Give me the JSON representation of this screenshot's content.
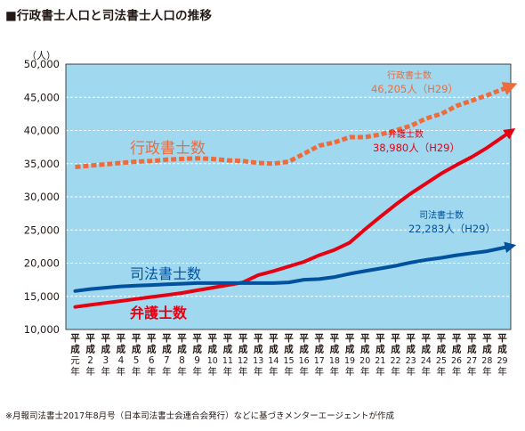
{
  "title": "■行政書士人口と司法書士人口の推移",
  "source_note": "※月報司法書士2017年8月号（日本司法書士会連合会発行）などに基づきメンターエージェントが作成",
  "chart_data": {
    "type": "line",
    "title": "■行政書士人口と司法書士人口の推移",
    "ylabel": "（人）",
    "xlabel": "",
    "ylim": [
      10000,
      50000
    ],
    "ytick_step": 5000,
    "y_tick_labels": [
      "10,000",
      "15,000",
      "20,000",
      "25,000",
      "30,000",
      "35,000",
      "40,000",
      "45,000",
      "50,000"
    ],
    "grid": true,
    "categories": [
      "平成元年",
      "平成2年",
      "平成3年",
      "平成4年",
      "平成5年",
      "平成6年",
      "平成7年",
      "平成8年",
      "平成9年",
      "平成10年",
      "平成11年",
      "平成12年",
      "平成13年",
      "平成14年",
      "平成15年",
      "平成16年",
      "平成17年",
      "平成18年",
      "平成19年",
      "平成20年",
      "平成21年",
      "平成22年",
      "平成23年",
      "平成24年",
      "平成25年",
      "平成26年",
      "平成27年",
      "平成28年",
      "平成29年"
    ],
    "x_tick_labels": [
      [
        "平",
        "成",
        "元",
        "年"
      ],
      [
        "平",
        "成",
        "2",
        "年"
      ],
      [
        "平",
        "成",
        "3",
        "年"
      ],
      [
        "平",
        "成",
        "4",
        "年"
      ],
      [
        "平",
        "成",
        "5",
        "年"
      ],
      [
        "平",
        "成",
        "6",
        "年"
      ],
      [
        "平",
        "成",
        "7",
        "年"
      ],
      [
        "平",
        "成",
        "8",
        "年"
      ],
      [
        "平",
        "成",
        "9",
        "年"
      ],
      [
        "平",
        "成",
        "10",
        "年"
      ],
      [
        "平",
        "成",
        "11",
        "年"
      ],
      [
        "平",
        "成",
        "12",
        "年"
      ],
      [
        "平",
        "成",
        "13",
        "年"
      ],
      [
        "平",
        "成",
        "14",
        "年"
      ],
      [
        "平",
        "成",
        "15",
        "年"
      ],
      [
        "平",
        "成",
        "16",
        "年"
      ],
      [
        "平",
        "成",
        "17",
        "年"
      ],
      [
        "平",
        "成",
        "18",
        "年"
      ],
      [
        "平",
        "成",
        "19",
        "年"
      ],
      [
        "平",
        "成",
        "20",
        "年"
      ],
      [
        "平",
        "成",
        "21",
        "年"
      ],
      [
        "平",
        "成",
        "22",
        "年"
      ],
      [
        "平",
        "成",
        "23",
        "年"
      ],
      [
        "平",
        "成",
        "24",
        "年"
      ],
      [
        "平",
        "成",
        "25",
        "年"
      ],
      [
        "平",
        "成",
        "26",
        "年"
      ],
      [
        "平",
        "成",
        "27",
        "年"
      ],
      [
        "平",
        "成",
        "28",
        "年"
      ],
      [
        "平",
        "成",
        "29",
        "年"
      ]
    ],
    "series": [
      {
        "name": "行政書士数",
        "color": "#ee6b3c",
        "dashed": true,
        "values": [
          34500,
          34700,
          34900,
          35100,
          35300,
          35400,
          35600,
          35700,
          35800,
          35700,
          35500,
          35400,
          35100,
          35000,
          35300,
          36500,
          37700,
          38200,
          39000,
          39000,
          39400,
          40000,
          40700,
          41800,
          42500,
          43700,
          44500,
          45300,
          46205
        ],
        "end_label": [
          "行政書士数",
          "46,205人（H29）"
        ]
      },
      {
        "name": "弁護士数",
        "color": "#e50012",
        "dashed": false,
        "values": [
          13400,
          13700,
          14000,
          14300,
          14600,
          14900,
          15200,
          15500,
          15900,
          16300,
          16700,
          17100,
          18200,
          18800,
          19500,
          20200,
          21200,
          22000,
          23100,
          25100,
          27000,
          28800,
          30500,
          32000,
          33500,
          34800,
          36000,
          37400,
          38980
        ],
        "end_label": [
          "弁護士数",
          "38,980人（H29）"
        ]
      },
      {
        "name": "司法書士数",
        "color": "#00519e",
        "dashed": false,
        "values": [
          15800,
          16100,
          16300,
          16500,
          16600,
          16700,
          16800,
          16900,
          17000,
          17000,
          17000,
          17000,
          17000,
          17000,
          17100,
          17500,
          17600,
          17900,
          18400,
          18800,
          19200,
          19600,
          20100,
          20500,
          20800,
          21200,
          21500,
          21800,
          22283
        ],
        "end_label": [
          "司法書士数",
          "22,283人（H29）"
        ]
      }
    ]
  }
}
